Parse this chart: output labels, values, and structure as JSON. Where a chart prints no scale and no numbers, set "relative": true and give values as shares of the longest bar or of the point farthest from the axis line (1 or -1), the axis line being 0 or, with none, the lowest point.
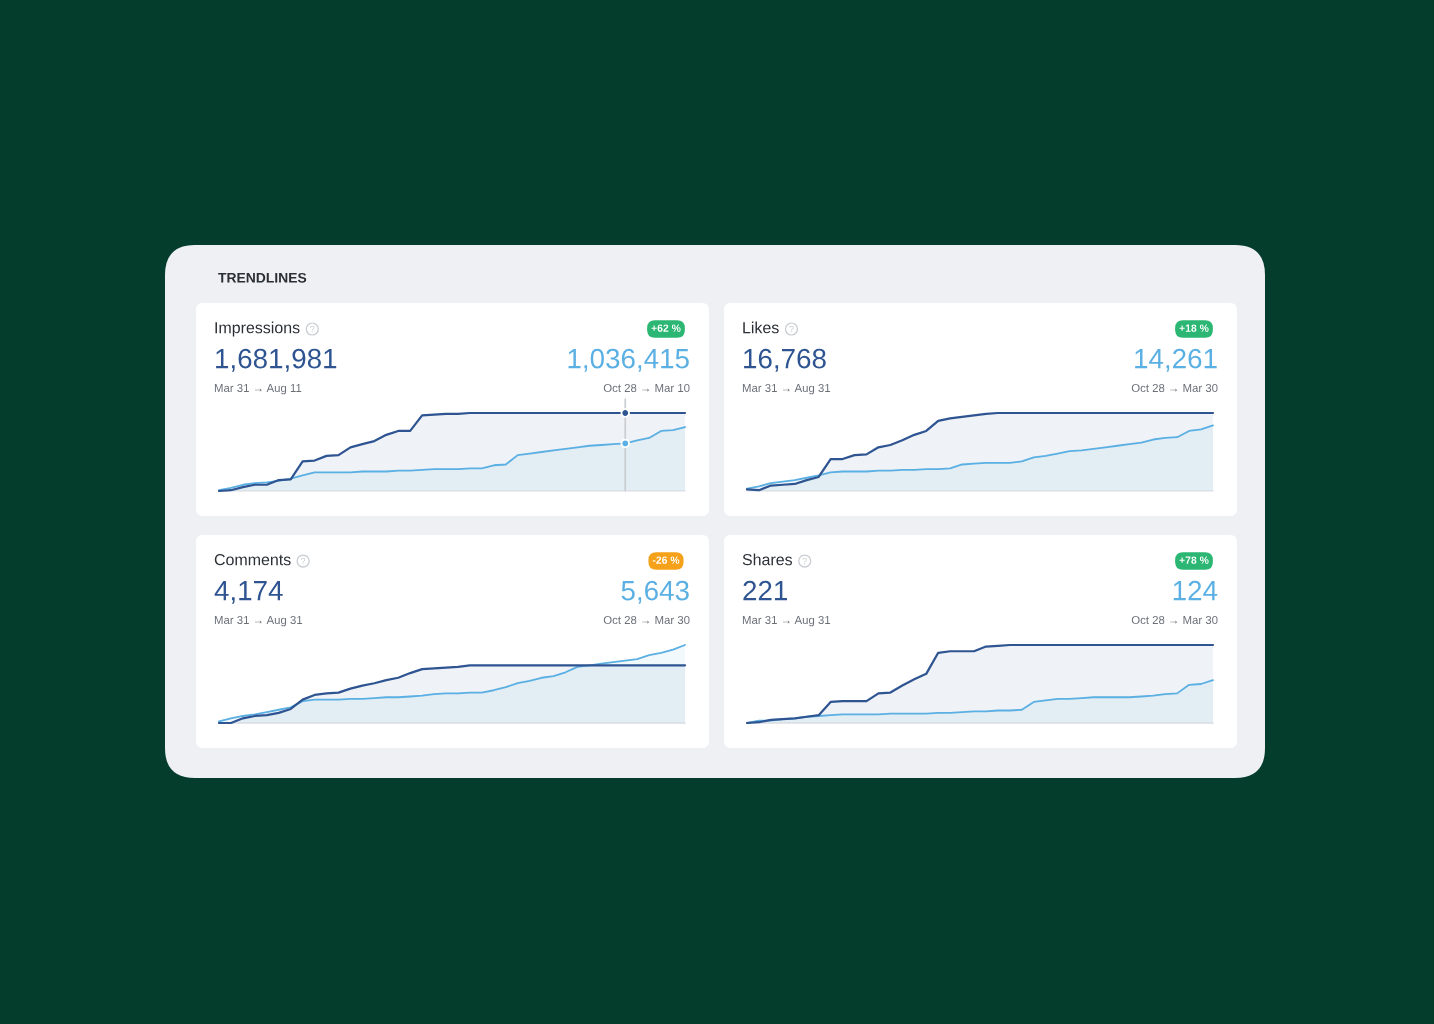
{
  "chart_data": [
    {
      "type": "other",
      "title": "TRENDLINES"
    },
    {
      "type": "area",
      "title": "Impressions",
      "relative": true,
      "annotations": [
        "+62 %",
        "1,681,981",
        "1,036,415",
        "Mar 31 → Aug 11",
        "Oct 28 → Mar 10"
      ],
      "categories": [
        null,
        null,
        null,
        null,
        null,
        null,
        null,
        null,
        null,
        null,
        null,
        null,
        null,
        null,
        null,
        null,
        null,
        null,
        null,
        null,
        null,
        null,
        null,
        null,
        null,
        null,
        null,
        null,
        null,
        null,
        null,
        null,
        null,
        null,
        null,
        null,
        null,
        null,
        null,
        null
      ],
      "series": [
        {
          "color": "#2e5491",
          "values": [
            0,
            0.01,
            0.05,
            0.08,
            0.08,
            0.14,
            0.15,
            0.38,
            0.39,
            0.45,
            0.46,
            0.56,
            0.6,
            0.64,
            0.72,
            0.77,
            0.77,
            0.97,
            0.98,
            0.99,
            0.99,
            1,
            1,
            1,
            1,
            1,
            1,
            1,
            1,
            1,
            1,
            1,
            1,
            1,
            1,
            1,
            1,
            1,
            1,
            1
          ]
        },
        {
          "color": "#5aafe3",
          "values": [
            0.01,
            0.04,
            0.08,
            0.1,
            0.11,
            0.13,
            0.16,
            0.2,
            0.24,
            0.24,
            0.24,
            0.24,
            0.25,
            0.25,
            0.25,
            0.26,
            0.26,
            0.27,
            0.28,
            0.28,
            0.28,
            0.29,
            0.29,
            0.33,
            0.34,
            0.46,
            0.48,
            0.5,
            0.52,
            0.54,
            0.56,
            0.58,
            0.59,
            0.6,
            0.61,
            0.65,
            0.68,
            0.77,
            0.78,
            0.82
          ]
        }
      ]
    },
    {
      "type": "area",
      "title": "Likes",
      "relative": true,
      "annotations": [
        "+18 %",
        "16,768",
        "14,261",
        "Mar 31 → Aug 31",
        "Oct 28 → Mar 30"
      ],
      "categories": [
        null,
        null,
        null,
        null,
        null,
        null,
        null,
        null,
        null,
        null,
        null,
        null,
        null,
        null,
        null,
        null,
        null,
        null,
        null,
        null,
        null,
        null,
        null,
        null,
        null,
        null,
        null,
        null,
        null,
        null,
        null,
        null,
        null,
        null,
        null,
        null,
        null,
        null,
        null,
        null
      ],
      "series": [
        {
          "color": "#2e5491",
          "values": [
            0.02,
            0.01,
            0.07,
            0.08,
            0.09,
            0.14,
            0.18,
            0.41,
            0.41,
            0.46,
            0.47,
            0.56,
            0.59,
            0.65,
            0.72,
            0.77,
            0.9,
            0.93,
            0.95,
            0.97,
            0.99,
            1,
            1,
            1,
            1,
            1,
            1,
            1,
            1,
            1,
            1,
            1,
            1,
            1,
            1,
            1,
            1,
            1,
            1,
            1
          ]
        },
        {
          "color": "#5aafe3",
          "values": [
            0.03,
            0.06,
            0.1,
            0.12,
            0.14,
            0.17,
            0.2,
            0.24,
            0.25,
            0.25,
            0.25,
            0.26,
            0.26,
            0.27,
            0.27,
            0.28,
            0.28,
            0.29,
            0.34,
            0.35,
            0.36,
            0.36,
            0.36,
            0.38,
            0.43,
            0.45,
            0.48,
            0.51,
            0.52,
            0.54,
            0.56,
            0.58,
            0.6,
            0.62,
            0.66,
            0.68,
            0.69,
            0.77,
            0.79,
            0.84
          ]
        }
      ]
    },
    {
      "type": "area",
      "title": "Comments",
      "relative": true,
      "annotations": [
        "-26 %",
        "4,174",
        "5,643",
        "Mar 31 → Aug 31",
        "Oct 28 → Mar 30"
      ],
      "categories": [
        null,
        null,
        null,
        null,
        null,
        null,
        null,
        null,
        null,
        null,
        null,
        null,
        null,
        null,
        null,
        null,
        null,
        null,
        null,
        null,
        null,
        null,
        null,
        null,
        null,
        null,
        null,
        null,
        null,
        null,
        null,
        null,
        null,
        null,
        null,
        null,
        null,
        null,
        null,
        null
      ],
      "series": [
        {
          "color": "#2e5491",
          "values": [
            0,
            0,
            0.06,
            0.09,
            0.1,
            0.13,
            0.18,
            0.3,
            0.36,
            0.38,
            0.39,
            0.44,
            0.48,
            0.51,
            0.55,
            0.58,
            0.64,
            0.69,
            0.7,
            0.71,
            0.72,
            0.74,
            0.74,
            0.74,
            0.74,
            0.74,
            0.74,
            0.74,
            0.74,
            0.74,
            0.74,
            0.74,
            0.74,
            0.74,
            0.74,
            0.74,
            0.74,
            0.74,
            0.74,
            0.74
          ]
        },
        {
          "color": "#5aafe3",
          "values": [
            0.02,
            0.06,
            0.09,
            0.11,
            0.14,
            0.17,
            0.2,
            0.28,
            0.3,
            0.3,
            0.3,
            0.31,
            0.31,
            0.32,
            0.33,
            0.33,
            0.34,
            0.35,
            0.37,
            0.38,
            0.38,
            0.39,
            0.39,
            0.42,
            0.46,
            0.51,
            0.54,
            0.58,
            0.6,
            0.65,
            0.72,
            0.74,
            0.76,
            0.78,
            0.8,
            0.82,
            0.87,
            0.9,
            0.94,
            1
          ]
        }
      ]
    },
    {
      "type": "area",
      "title": "Shares",
      "relative": true,
      "annotations": [
        "+78 %",
        "221",
        "124",
        "Mar 31 → Aug 31",
        "Oct 28 → Mar 30"
      ],
      "categories": [
        null,
        null,
        null,
        null,
        null,
        null,
        null,
        null,
        null,
        null,
        null,
        null,
        null,
        null,
        null,
        null,
        null,
        null,
        null,
        null,
        null,
        null,
        null,
        null,
        null,
        null,
        null,
        null,
        null,
        null,
        null,
        null,
        null,
        null,
        null,
        null,
        null,
        null,
        null,
        null
      ],
      "series": [
        {
          "color": "#2e5491",
          "values": [
            0,
            0.01,
            0.04,
            0.05,
            0.06,
            0.08,
            0.1,
            0.27,
            0.28,
            0.28,
            0.28,
            0.38,
            0.39,
            0.48,
            0.56,
            0.63,
            0.9,
            0.92,
            0.92,
            0.92,
            0.98,
            0.99,
            1,
            1,
            1,
            1,
            1,
            1,
            1,
            1,
            1,
            1,
            1,
            1,
            1,
            1,
            1,
            1,
            1,
            1
          ]
        },
        {
          "color": "#5aafe3",
          "values": [
            0,
            0.03,
            0.03,
            0.05,
            0.06,
            0.08,
            0.09,
            0.1,
            0.11,
            0.11,
            0.11,
            0.11,
            0.12,
            0.12,
            0.12,
            0.12,
            0.13,
            0.13,
            0.14,
            0.15,
            0.15,
            0.16,
            0.16,
            0.17,
            0.27,
            0.29,
            0.31,
            0.31,
            0.32,
            0.33,
            0.33,
            0.33,
            0.33,
            0.34,
            0.35,
            0.37,
            0.38,
            0.49,
            0.5,
            0.55
          ]
        }
      ]
    }
  ]
}
